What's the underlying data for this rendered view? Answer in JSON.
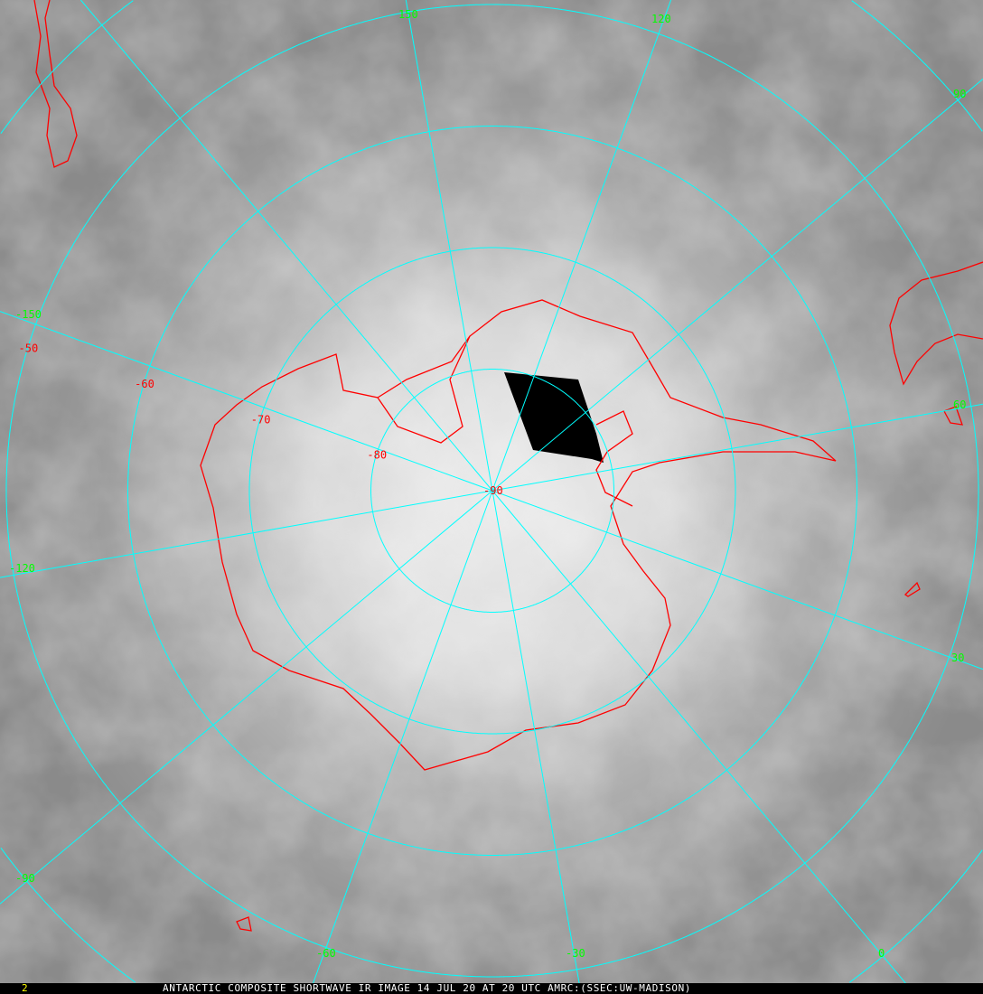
{
  "footer": {
    "frame_number": "2",
    "caption": "ANTARCTIC COMPOSITE SHORTWAVE IR IMAGE 14 JUL 20 AT 20 UTC AMRC:(SSEC:UW-MADISON)"
  },
  "map": {
    "projection": "south polar stereographic",
    "latitude_labels": [
      {
        "lat": -50,
        "text": "-50"
      },
      {
        "lat": -60,
        "text": "-60"
      },
      {
        "lat": -70,
        "text": "-70"
      },
      {
        "lat": -80,
        "text": "-80"
      },
      {
        "lat": -90,
        "text": "-90"
      }
    ],
    "longitude_labels": [
      {
        "lon": 150,
        "text": "150"
      },
      {
        "lon": 120,
        "text": "120"
      },
      {
        "lon": 90,
        "text": "90"
      },
      {
        "lon": 60,
        "text": "60"
      },
      {
        "lon": 30,
        "text": "30"
      },
      {
        "lon": 0,
        "text": "0"
      },
      {
        "lon": -30,
        "text": "-30"
      },
      {
        "lon": -60,
        "text": "-60"
      },
      {
        "lon": -90,
        "text": "-90"
      },
      {
        "lon": -120,
        "text": "-120"
      },
      {
        "lon": -150,
        "text": "-150"
      }
    ],
    "colors": {
      "grid": "#00ffff",
      "coastline": "#ff0000",
      "longitude_label": "#00ff00",
      "latitude_label": "#ff0000",
      "frame_number": "#ffff00",
      "caption": "#ffffff"
    }
  }
}
